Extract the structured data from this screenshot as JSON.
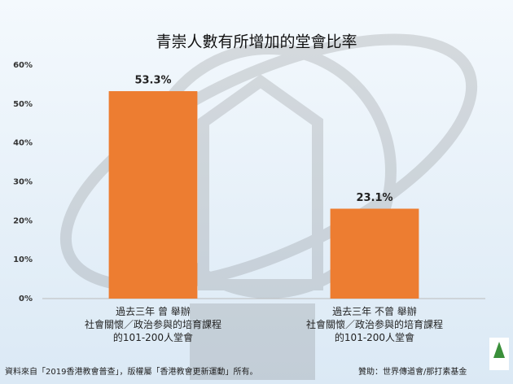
{
  "chart_data": {
    "type": "bar",
    "title": "青崇人數有所增加的堂會比率",
    "categories": [
      "過去三年 曾 舉辦\n社會關懷／政治参與的培育課程\n的101-200人堂會",
      "過去三年 不曾 舉辦\n社會關懷／政治参與的培育課程\n的101-200人堂會"
    ],
    "values": [
      53.3,
      23.1
    ],
    "value_labels": [
      "53.3%",
      "23.1%"
    ],
    "color": "#ed7d31",
    "ylim": [
      0,
      60
    ],
    "yticks": [
      {
        "value": 0,
        "label": "0%"
      },
      {
        "value": 10,
        "label": "10%"
      },
      {
        "value": 20,
        "label": "20%"
      },
      {
        "value": 30,
        "label": "30%"
      },
      {
        "value": 40,
        "label": "40%"
      },
      {
        "value": 50,
        "label": "50%"
      },
      {
        "value": 60,
        "label": "60%"
      }
    ],
    "grid": false
  },
  "footer": {
    "source": "資料來自「2019香港教會普查」，版權屬「香港教會更新運動」所有。",
    "sponsor": "贊助：世界傳道會/那打素基金"
  }
}
